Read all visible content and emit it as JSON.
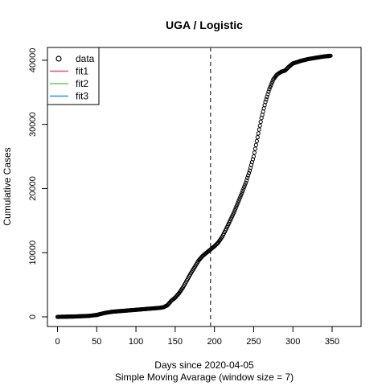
{
  "chart_data": {
    "type": "scatter",
    "title": "UGA / Logistic",
    "xlabel": "Days since 2020-04-05",
    "xlabel2": "Simple Moving Avarage (window size = 7)",
    "ylabel": "Cumulative Cases",
    "xlim": [
      0,
      350
    ],
    "ylim": [
      0,
      42000
    ],
    "xticks": [
      0,
      50,
      100,
      150,
      200,
      250,
      300,
      350
    ],
    "yticks": [
      0,
      10000,
      20000,
      30000,
      40000
    ],
    "xtick_labels": [
      "0",
      "50",
      "100",
      "150",
      "200",
      "250",
      "300",
      "350"
    ],
    "ytick_labels": [
      "0",
      "10000",
      "20000",
      "30000",
      "40000"
    ],
    "vline_x": 195,
    "grid": false,
    "legend_position": "top-left",
    "legend": [
      {
        "label": "data",
        "symbol": "circle",
        "color": "#000000"
      },
      {
        "label": "fit1",
        "symbol": "line",
        "color": "#DF536B"
      },
      {
        "label": "fit2",
        "symbol": "line",
        "color": "#61D04F"
      },
      {
        "label": "fit3",
        "symbol": "line",
        "color": "#2297E6"
      }
    ],
    "series": [
      {
        "name": "data",
        "x": [
          0,
          20,
          40,
          50,
          60,
          70,
          80,
          90,
          100,
          110,
          120,
          130,
          135,
          140,
          145,
          150,
          155,
          160,
          165,
          170,
          175,
          180,
          185,
          190,
          195,
          200,
          205,
          210,
          215,
          220,
          225,
          230,
          235,
          240,
          245,
          250,
          255,
          260,
          265,
          270,
          275,
          280,
          285,
          290,
          295,
          300,
          310,
          320,
          330,
          340,
          348
        ],
        "y": [
          0,
          50,
          150,
          300,
          600,
          800,
          900,
          1000,
          1100,
          1200,
          1300,
          1400,
          1500,
          1800,
          2500,
          3000,
          3700,
          4600,
          5700,
          6800,
          7800,
          8800,
          9500,
          10000,
          10500,
          11000,
          11600,
          12500,
          13700,
          15000,
          16300,
          17800,
          19300,
          20900,
          22800,
          25000,
          28000,
          31000,
          33500,
          35500,
          37000,
          37800,
          38200,
          38400,
          39000,
          39500,
          39900,
          40200,
          40400,
          40600,
          40700
        ]
      }
    ]
  }
}
